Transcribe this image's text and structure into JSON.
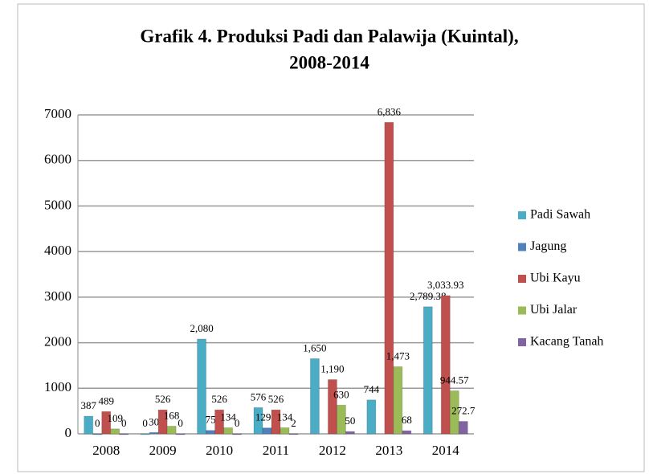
{
  "chart_data": {
    "type": "bar",
    "title": [
      "Grafik 4. Produksi Padi dan Palawija (Kuintal),",
      "2008-2014"
    ],
    "categories": [
      "2008",
      "2009",
      "2010",
      "2011",
      "2012",
      "2013",
      "2014"
    ],
    "series": [
      {
        "name": "Padi Sawah",
        "color": "#4bacc6",
        "values": [
          387,
          0,
          2080,
          576,
          1650,
          744,
          2789.38
        ],
        "value_labels": [
          "387",
          "0",
          "2,080",
          "576",
          "1,650",
          "744",
          "2,789.38"
        ]
      },
      {
        "name": "Jagung",
        "color": "#4f81bd",
        "values": [
          0,
          30,
          75,
          129.6,
          null,
          null,
          null
        ],
        "value_labels": [
          "0",
          "30",
          "75",
          "129.6",
          null,
          null,
          null
        ]
      },
      {
        "name": "Ubi Kayu",
        "color": "#c0504d",
        "values": [
          489,
          526,
          526,
          526,
          1190,
          6836,
          3033.93
        ],
        "value_labels": [
          "489",
          "526",
          "526",
          "526",
          "1,190",
          "6,836",
          "3,033.93"
        ]
      },
      {
        "name": "Ubi Jalar",
        "color": "#9bbb59",
        "values": [
          109,
          168,
          134,
          134,
          630,
          1473,
          944.57
        ],
        "value_labels": [
          "109",
          "168",
          "134",
          "134",
          "630",
          "1,473",
          "944.57"
        ]
      },
      {
        "name": "Kacang Tanah",
        "color": "#8064a2",
        "values": [
          0,
          0,
          0,
          2,
          50,
          68,
          272.7
        ],
        "value_labels": [
          "0",
          "0",
          "0",
          "2",
          "50",
          "68",
          "272.7"
        ]
      }
    ],
    "ylim": [
      0,
      7000
    ],
    "yticks": [
      0,
      1000,
      2000,
      3000,
      4000,
      5000,
      6000,
      7000
    ],
    "grid": true,
    "legend": "right"
  }
}
